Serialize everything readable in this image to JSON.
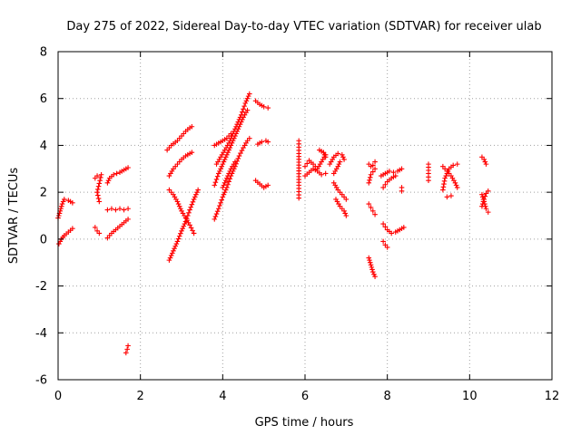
{
  "chart_data": {
    "type": "scatter",
    "title": "Day 275 of 2022, Sidereal Day-to-day VTEC variation (SDTVAR) for receiver ulab",
    "xlabel": "GPS time / hours",
    "ylabel": "SDTVAR / TECUs",
    "xlim": [
      0,
      12
    ],
    "ylim": [
      -6,
      8
    ],
    "x_ticks": [
      0,
      2,
      4,
      6,
      8,
      10,
      12
    ],
    "y_ticks": [
      -6,
      -4,
      -2,
      0,
      2,
      4,
      6,
      8
    ],
    "x_tick_labels": [
      "0",
      "2",
      "4",
      "6",
      "8",
      "10",
      "12"
    ],
    "y_tick_labels": [
      "-6",
      "-4",
      "-2",
      "0",
      "2",
      "4",
      "6",
      "8"
    ],
    "grid": true,
    "marker": "+",
    "color": "#ff0000",
    "segments": [
      [
        [
          0.02,
          -0.2
        ],
        [
          0.08,
          0.0
        ],
        [
          0.15,
          0.15
        ],
        [
          0.25,
          0.3
        ],
        [
          0.35,
          0.45
        ]
      ],
      [
        [
          0.0,
          0.9
        ],
        [
          0.05,
          1.2
        ],
        [
          0.1,
          1.5
        ],
        [
          0.15,
          1.7
        ],
        [
          0.25,
          1.65
        ],
        [
          0.35,
          1.55
        ]
      ],
      [
        [
          0.9,
          2.6
        ],
        [
          0.95,
          2.7
        ],
        [
          1.05,
          2.75
        ],
        [
          0.95,
          2.0
        ],
        [
          1.0,
          1.6
        ]
      ],
      [
        [
          0.9,
          0.5
        ],
        [
          0.95,
          0.35
        ],
        [
          1.0,
          0.25
        ]
      ],
      [
        [
          1.2,
          2.4
        ],
        [
          1.25,
          2.6
        ],
        [
          1.35,
          2.75
        ],
        [
          1.5,
          2.85
        ],
        [
          1.6,
          2.95
        ],
        [
          1.7,
          3.05
        ]
      ],
      [
        [
          1.2,
          1.25
        ],
        [
          1.3,
          1.3
        ],
        [
          1.4,
          1.25
        ],
        [
          1.5,
          1.3
        ],
        [
          1.6,
          1.25
        ],
        [
          1.7,
          1.3
        ]
      ],
      [
        [
          1.2,
          0.05
        ],
        [
          1.3,
          0.25
        ],
        [
          1.4,
          0.4
        ],
        [
          1.5,
          0.55
        ],
        [
          1.6,
          0.7
        ],
        [
          1.7,
          0.85
        ]
      ],
      [
        [
          1.65,
          -4.85
        ],
        [
          1.68,
          -4.7
        ],
        [
          1.7,
          -4.55
        ]
      ],
      [
        [
          2.7,
          -0.9
        ],
        [
          2.8,
          -0.5
        ],
        [
          2.9,
          -0.1
        ],
        [
          3.0,
          0.35
        ],
        [
          3.1,
          0.75
        ],
        [
          3.15,
          1.0
        ],
        [
          3.2,
          1.25
        ],
        [
          3.3,
          1.7
        ],
        [
          3.4,
          2.1
        ]
      ],
      [
        [
          2.7,
          2.1
        ],
        [
          2.8,
          1.9
        ],
        [
          2.9,
          1.6
        ],
        [
          3.0,
          1.2
        ],
        [
          3.1,
          0.9
        ],
        [
          3.2,
          0.6
        ],
        [
          3.3,
          0.25
        ]
      ],
      [
        [
          2.65,
          3.8
        ],
        [
          2.75,
          4.0
        ],
        [
          2.9,
          4.2
        ],
        [
          3.0,
          4.4
        ],
        [
          3.1,
          4.6
        ],
        [
          3.2,
          4.75
        ],
        [
          3.25,
          4.8
        ]
      ],
      [
        [
          2.7,
          2.7
        ],
        [
          2.8,
          3.0
        ],
        [
          2.9,
          3.2
        ],
        [
          3.0,
          3.4
        ],
        [
          3.1,
          3.55
        ],
        [
          3.2,
          3.65
        ],
        [
          3.25,
          3.7
        ]
      ],
      [
        [
          3.8,
          0.85
        ],
        [
          3.9,
          1.3
        ],
        [
          4.0,
          1.8
        ],
        [
          4.1,
          2.2
        ],
        [
          4.2,
          2.7
        ],
        [
          4.3,
          3.1
        ],
        [
          4.4,
          3.55
        ],
        [
          4.5,
          3.9
        ],
        [
          4.6,
          4.2
        ],
        [
          4.65,
          4.3
        ]
      ],
      [
        [
          3.8,
          2.3
        ],
        [
          3.9,
          2.8
        ],
        [
          4.0,
          3.2
        ],
        [
          4.1,
          3.6
        ],
        [
          4.2,
          4.0
        ],
        [
          4.3,
          4.4
        ],
        [
          4.4,
          4.8
        ],
        [
          4.5,
          5.2
        ],
        [
          4.6,
          5.5
        ]
      ],
      [
        [
          3.85,
          3.2
        ],
        [
          3.95,
          3.5
        ],
        [
          4.05,
          3.8
        ],
        [
          4.15,
          4.1
        ],
        [
          4.25,
          4.5
        ],
        [
          4.35,
          4.9
        ],
        [
          4.45,
          5.3
        ],
        [
          4.55,
          5.8
        ],
        [
          4.65,
          6.2
        ]
      ],
      [
        [
          3.8,
          4.0
        ],
        [
          3.9,
          4.1
        ],
        [
          4.0,
          4.2
        ],
        [
          4.1,
          4.3
        ],
        [
          4.2,
          4.5
        ]
      ],
      [
        [
          4.0,
          2.2
        ],
        [
          4.1,
          2.6
        ],
        [
          4.2,
          3.0
        ],
        [
          4.3,
          3.3
        ]
      ],
      [
        [
          4.8,
          5.9
        ],
        [
          4.9,
          5.75
        ],
        [
          5.0,
          5.65
        ],
        [
          5.1,
          5.6
        ]
      ],
      [
        [
          4.85,
          4.05
        ],
        [
          4.95,
          4.15
        ],
        [
          5.05,
          4.2
        ],
        [
          5.1,
          4.15
        ]
      ],
      [
        [
          4.8,
          2.5
        ],
        [
          4.9,
          2.35
        ],
        [
          5.0,
          2.2
        ],
        [
          5.1,
          2.3
        ]
      ],
      [
        [
          5.85,
          4.2
        ],
        [
          5.85,
          3.65
        ],
        [
          5.85,
          2.3
        ],
        [
          5.85,
          1.75
        ]
      ],
      [
        [
          6.0,
          2.7
        ],
        [
          6.1,
          2.85
        ],
        [
          6.2,
          3.0
        ],
        [
          6.3,
          2.9
        ],
        [
          6.4,
          2.75
        ],
        [
          6.5,
          2.8
        ]
      ],
      [
        [
          6.0,
          3.1
        ],
        [
          6.1,
          3.35
        ],
        [
          6.2,
          3.2
        ],
        [
          6.3,
          3.0
        ],
        [
          6.4,
          3.3
        ],
        [
          6.5,
          3.6
        ]
      ],
      [
        [
          6.35,
          3.8
        ],
        [
          6.45,
          3.7
        ],
        [
          6.5,
          3.5
        ]
      ],
      [
        [
          6.6,
          3.2
        ],
        [
          6.7,
          3.5
        ],
        [
          6.8,
          3.65
        ],
        [
          6.9,
          3.6
        ],
        [
          6.95,
          3.4
        ]
      ],
      [
        [
          6.7,
          2.8
        ],
        [
          6.8,
          3.1
        ],
        [
          6.85,
          3.3
        ]
      ],
      [
        [
          6.7,
          2.4
        ],
        [
          6.8,
          2.1
        ],
        [
          6.9,
          1.9
        ],
        [
          7.0,
          1.7
        ]
      ],
      [
        [
          6.75,
          1.7
        ],
        [
          6.85,
          1.4
        ],
        [
          6.95,
          1.2
        ],
        [
          7.0,
          1.0
        ]
      ],
      [
        [
          7.55,
          3.2
        ],
        [
          7.6,
          3.1
        ],
        [
          7.65,
          3.15
        ],
        [
          7.7,
          3.3
        ]
      ],
      [
        [
          7.55,
          2.4
        ],
        [
          7.6,
          2.75
        ],
        [
          7.7,
          3.0
        ]
      ],
      [
        [
          7.55,
          1.5
        ],
        [
          7.6,
          1.35
        ],
        [
          7.65,
          1.2
        ],
        [
          7.7,
          1.05
        ]
      ],
      [
        [
          7.55,
          -0.8
        ],
        [
          7.6,
          -1.1
        ],
        [
          7.65,
          -1.4
        ],
        [
          7.7,
          -1.6
        ]
      ],
      [
        [
          7.85,
          2.7
        ],
        [
          7.95,
          2.8
        ],
        [
          8.05,
          2.9
        ],
        [
          8.15,
          2.85
        ],
        [
          8.25,
          2.9
        ],
        [
          8.35,
          3.0
        ]
      ],
      [
        [
          7.9,
          2.2
        ],
        [
          8.0,
          2.45
        ],
        [
          8.1,
          2.6
        ],
        [
          8.2,
          2.7
        ]
      ],
      [
        [
          7.9,
          0.65
        ],
        [
          8.0,
          0.4
        ],
        [
          8.1,
          0.25
        ],
        [
          8.2,
          0.3
        ],
        [
          8.3,
          0.4
        ],
        [
          8.4,
          0.5
        ]
      ],
      [
        [
          7.9,
          -0.1
        ],
        [
          7.95,
          -0.25
        ],
        [
          8.0,
          -0.35
        ]
      ],
      [
        [
          8.35,
          2.2
        ],
        [
          8.35,
          2.05
        ]
      ],
      [
        [
          9.0,
          3.2
        ],
        [
          9.0,
          2.8
        ],
        [
          9.0,
          2.5
        ]
      ],
      [
        [
          9.35,
          2.1
        ],
        [
          9.4,
          2.6
        ],
        [
          9.5,
          3.0
        ],
        [
          9.6,
          3.15
        ],
        [
          9.7,
          3.2
        ]
      ],
      [
        [
          9.35,
          3.1
        ],
        [
          9.45,
          2.9
        ],
        [
          9.55,
          2.7
        ],
        [
          9.65,
          2.4
        ],
        [
          9.7,
          2.2
        ]
      ],
      [
        [
          9.45,
          1.8
        ],
        [
          9.55,
          1.85
        ]
      ],
      [
        [
          10.3,
          3.5
        ],
        [
          10.35,
          3.4
        ],
        [
          10.4,
          3.2
        ]
      ],
      [
        [
          10.3,
          1.9
        ],
        [
          10.35,
          1.6
        ],
        [
          10.4,
          1.3
        ],
        [
          10.45,
          1.15
        ]
      ],
      [
        [
          10.3,
          1.4
        ],
        [
          10.35,
          1.7
        ],
        [
          10.4,
          1.95
        ],
        [
          10.45,
          2.05
        ]
      ]
    ]
  }
}
